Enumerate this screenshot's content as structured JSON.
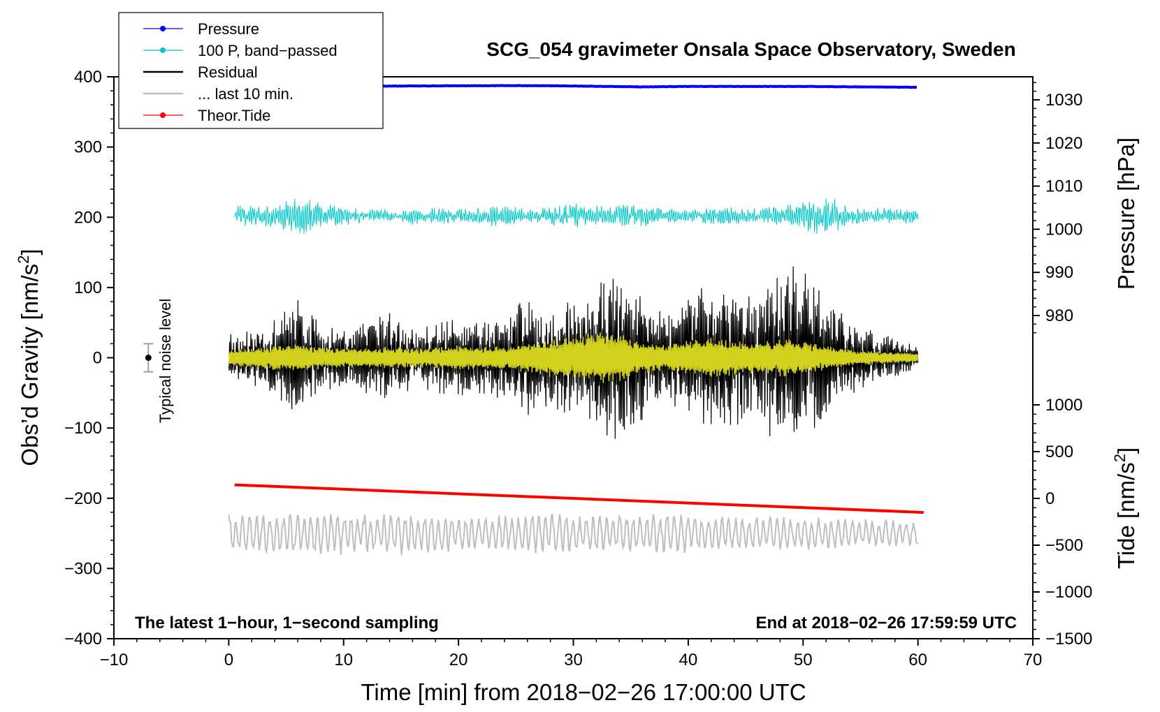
{
  "chart_data": {
    "type": "line",
    "title": "SCG_054 gravimeter Onsala Space Observatory, Sweden",
    "xlabel": "Time [min] from 2018−02−26 17:00:00 UTC",
    "ylabel_left": "Obs’d Gravity [nm/s",
    "ylabel_left_sup": "2",
    "ylabel_left_close": "]",
    "ylabel_right_top": "Pressure [hPa]",
    "ylabel_right_bottom": "Tide [nm/s",
    "ylabel_right_bottom_sup": "2",
    "ylabel_right_bottom_close": "]",
    "xlim": [
      -10,
      70
    ],
    "ylim": [
      -400,
      400
    ],
    "pressure_ylim": [
      975,
      1035
    ],
    "tide_ylim": [
      -1500,
      1000
    ],
    "x_ticks": [
      -10,
      0,
      10,
      20,
      30,
      40,
      50,
      60,
      70
    ],
    "x_tick_labels": [
      "−10",
      "0",
      "10",
      "20",
      "30",
      "40",
      "50",
      "60",
      "70"
    ],
    "y_ticks": [
      400,
      300,
      200,
      100,
      0,
      -100,
      -200,
      -300,
      -400
    ],
    "y_tick_labels": [
      "400",
      "300",
      "200",
      "100",
      "0",
      "−100",
      "−200",
      "−300",
      "−400"
    ],
    "pressure_ticks": [
      1030,
      1020,
      1010,
      1000,
      990,
      980
    ],
    "pressure_tick_labels": [
      "1030",
      "1020",
      "1010",
      "1000",
      "990",
      "980"
    ],
    "tide_ticks": [
      1000,
      500,
      0,
      -500,
      -1000,
      -1500
    ],
    "tide_tick_labels": [
      "1000",
      "500",
      "0",
      "−500",
      "−1000",
      "−1500"
    ],
    "annotation_left": "The latest 1−hour, 1−second sampling",
    "annotation_right": "End at 2018−02−26 17:59:59 UTC",
    "noise_label": "Typical noise level",
    "noise_bar": {
      "x": -7,
      "y": 0,
      "err": 20
    },
    "legend_position": "top-left",
    "legend": [
      {
        "label": "Pressure",
        "color": "#0000ff",
        "marker": true
      },
      {
        "label": "100 P, band−passed",
        "color": "#00c8c8",
        "marker": true
      },
      {
        "label": "Residual",
        "color": "#000000",
        "marker": false
      },
      {
        "label": "... last 10 min.",
        "color": "#bebebe",
        "marker": false
      },
      {
        "label": "Theor.Tide",
        "color": "#ff0000",
        "marker": true
      }
    ],
    "series": [
      {
        "name": "Pressure",
        "color": "#0000ff",
        "axis": "pressure",
        "x": [
          0,
          15,
          25,
          30,
          36,
          40,
          50,
          60
        ],
        "values": [
          1033.1,
          1033.2,
          1033.3,
          1033.2,
          1033.0,
          1033.1,
          1033.1,
          1032.9
        ]
      },
      {
        "name": "100 P, band-passed",
        "color": "#00c8c8",
        "axis": "gravity",
        "x_range": [
          0.5,
          60
        ],
        "center": 202,
        "amplitude": [
          15,
          15,
          20,
          30,
          18,
          14,
          10,
          10,
          15,
          12,
          12,
          15,
          14,
          10,
          15,
          20,
          14,
          16,
          18,
          10,
          12,
          14,
          12,
          12,
          15,
          20,
          32,
          15,
          12,
          12,
          10
        ]
      },
      {
        "name": "Residual",
        "color": "#000000",
        "axis": "gravity",
        "x_range": [
          0,
          60
        ],
        "center": 0,
        "amplitude": [
          35,
          40,
          55,
          90,
          50,
          40,
          60,
          65,
          45,
          50,
          60,
          55,
          65,
          90,
          75,
          85,
          110,
          120,
          100,
          70,
          90,
          110,
          100,
          85,
          150,
          130,
          85,
          55,
          40,
          28,
          20
        ]
      },
      {
        "name": "Residual filtered",
        "color": "#d2d21e",
        "axis": "gravity",
        "x_range": [
          0,
          60
        ],
        "center": 0,
        "amplitude": [
          12,
          14,
          18,
          20,
          16,
          14,
          14,
          16,
          14,
          16,
          18,
          16,
          16,
          22,
          28,
          32,
          38,
          34,
          24,
          18,
          26,
          30,
          26,
          24,
          28,
          24,
          18,
          12,
          10,
          8,
          6
        ]
      },
      {
        "name": "... last 10 min.",
        "color": "#bebebe",
        "axis": "gravity",
        "x_range": [
          0,
          60
        ],
        "center": -250,
        "amplitude": [
          28,
          30,
          32,
          35,
          34,
          32,
          28,
          30,
          32,
          28,
          26,
          24,
          26,
          28,
          30,
          28,
          26,
          28,
          30,
          32,
          28,
          26,
          24,
          26,
          28,
          26,
          24,
          22,
          20,
          20,
          18
        ]
      },
      {
        "name": "Theor.Tide",
        "color": "#ff0000",
        "axis": "tide",
        "x": [
          0.5,
          60.5
        ],
        "values": [
          145,
          -150
        ]
      }
    ]
  }
}
